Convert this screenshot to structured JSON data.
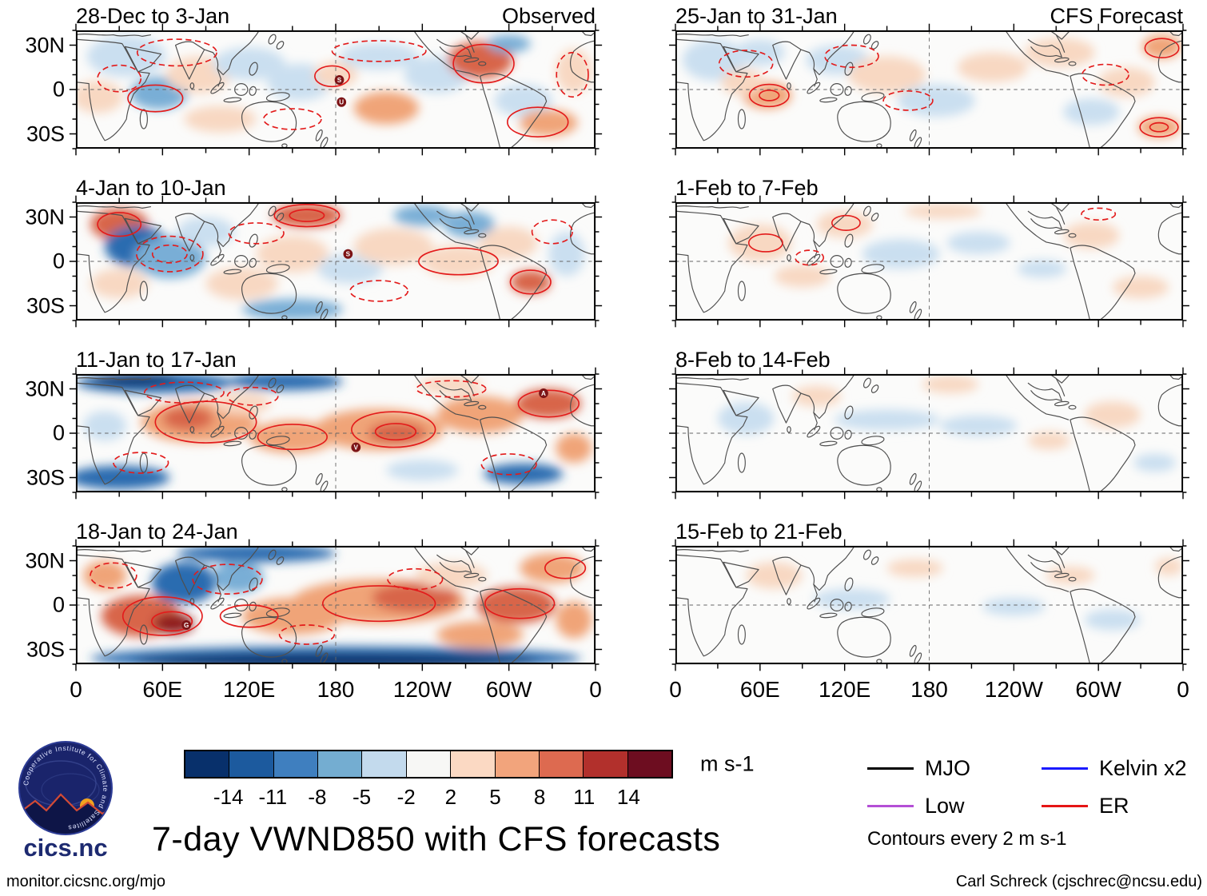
{
  "chart_data": {
    "type": "heatmap",
    "title": "7-day VWND850 with CFS forecasts",
    "units": "m s-1",
    "x_ticks": [
      "0",
      "60E",
      "120E",
      "180",
      "120W",
      "60W",
      "0"
    ],
    "y_ticks": [
      "30N",
      "0",
      "30S"
    ],
    "colorbar": {
      "labels": [
        "-14",
        "-11",
        "-8",
        "-5",
        "-2",
        "2",
        "5",
        "8",
        "11",
        "14"
      ],
      "colors": [
        "#08306b",
        "#1c5a9e",
        "#3f7fbf",
        "#74add1",
        "#c3daed",
        "#f7f7f5",
        "#fbd9c3",
        "#f2a47c",
        "#dd6a50",
        "#b2302c",
        "#6d0d20"
      ]
    },
    "legend": [
      {
        "label": "MJO",
        "color": "#000000"
      },
      {
        "label": "Kelvin x2",
        "color": "#1a1aff"
      },
      {
        "label": "Low",
        "color": "#b44fd6"
      },
      {
        "label": "ER",
        "color": "#e51515"
      }
    ],
    "contour_note": "Contours every 2 m s-1",
    "palette": {
      "db": "#08306b",
      "sb": "#2b6cb0",
      "mb": "#79aed6",
      "lb": "#cadff0",
      "lr": "#f8d8c2",
      "mr": "#f0a478",
      "sr": "#d8654a",
      "dr": "#8f1d1d"
    },
    "panels": [
      {
        "date": "28-Dec to 3-Jan",
        "corner": "Observed",
        "blobs": [
          [
            70,
            35,
            55,
            28,
            "lb"
          ],
          [
            30,
            90,
            35,
            22,
            "lr"
          ],
          [
            115,
            85,
            40,
            22,
            "mb"
          ],
          [
            170,
            60,
            45,
            25,
            "lr"
          ],
          [
            240,
            45,
            50,
            22,
            "lb"
          ],
          [
            310,
            70,
            45,
            25,
            "lb"
          ],
          [
            360,
            60,
            30,
            18,
            "lr"
          ],
          [
            420,
            35,
            55,
            18,
            "lb"
          ],
          [
            430,
            105,
            45,
            22,
            "mr"
          ],
          [
            500,
            60,
            45,
            25,
            "lb"
          ],
          [
            560,
            40,
            45,
            25,
            "sr"
          ],
          [
            600,
            18,
            30,
            12,
            "mb"
          ],
          [
            620,
            95,
            40,
            22,
            "lb"
          ],
          [
            655,
            125,
            40,
            18,
            "mr"
          ],
          [
            690,
            55,
            25,
            30,
            "lr"
          ],
          [
            200,
            120,
            50,
            18,
            "lr"
          ]
        ],
        "contours": [
          [
            140,
            30,
            55,
            18,
            1
          ],
          [
            110,
            92,
            38,
            18,
            0
          ],
          [
            420,
            28,
            65,
            14,
            1
          ],
          [
            355,
            62,
            24,
            14,
            0
          ],
          [
            300,
            120,
            40,
            14,
            1
          ],
          [
            565,
            45,
            42,
            26,
            0
          ],
          [
            640,
            124,
            42,
            20,
            0
          ],
          [
            688,
            60,
            22,
            30,
            1
          ],
          [
            60,
            65,
            30,
            18,
            1
          ]
        ],
        "markers": [
          [
            "S",
            365,
            67
          ],
          [
            "U",
            368,
            97
          ]
        ]
      },
      {
        "date": "4-Jan to 10-Jan",
        "corner": "",
        "blobs": [
          [
            60,
            30,
            40,
            22,
            "sr"
          ],
          [
            85,
            60,
            45,
            28,
            "sb"
          ],
          [
            130,
            75,
            50,
            28,
            "mb"
          ],
          [
            60,
            110,
            40,
            20,
            "lr"
          ],
          [
            180,
            40,
            40,
            20,
            "lb"
          ],
          [
            230,
            110,
            50,
            22,
            "lr"
          ],
          [
            320,
            18,
            48,
            16,
            "sr"
          ],
          [
            300,
            70,
            50,
            25,
            "lr"
          ],
          [
            380,
            90,
            45,
            20,
            "lb"
          ],
          [
            440,
            60,
            55,
            25,
            "lr"
          ],
          [
            480,
            18,
            40,
            14,
            "mb"
          ],
          [
            545,
            30,
            35,
            18,
            "mb"
          ],
          [
            530,
            80,
            50,
            22,
            "lr"
          ],
          [
            600,
            55,
            40,
            22,
            "lr"
          ],
          [
            630,
            108,
            28,
            16,
            "sr"
          ],
          [
            680,
            70,
            25,
            30,
            "lb"
          ],
          [
            300,
            145,
            70,
            14,
            "mb"
          ]
        ],
        "contours": [
          [
            130,
            70,
            46,
            24,
            1
          ],
          [
            130,
            70,
            24,
            12,
            1
          ],
          [
            320,
            18,
            45,
            15,
            0
          ],
          [
            320,
            18,
            24,
            8,
            0
          ],
          [
            250,
            42,
            38,
            14,
            1
          ],
          [
            530,
            80,
            55,
            18,
            0
          ],
          [
            630,
            108,
            28,
            16,
            0
          ],
          [
            660,
            40,
            28,
            16,
            1
          ],
          [
            60,
            30,
            30,
            16,
            0
          ],
          [
            420,
            120,
            40,
            14,
            1
          ]
        ],
        "markers": [
          [
            "S",
            377,
            70
          ]
        ]
      },
      {
        "date": "11-Jan to 17-Jan",
        "corner": "",
        "blobs": [
          [
            110,
            12,
            110,
            14,
            "sb"
          ],
          [
            80,
            8,
            60,
            8,
            "db"
          ],
          [
            60,
            140,
            70,
            16,
            "sb"
          ],
          [
            290,
            10,
            80,
            12,
            "sb"
          ],
          [
            170,
            65,
            80,
            28,
            "mr"
          ],
          [
            155,
            60,
            35,
            16,
            "sr"
          ],
          [
            300,
            85,
            60,
            22,
            "mr"
          ],
          [
            420,
            75,
            90,
            28,
            "mr"
          ],
          [
            445,
            80,
            40,
            15,
            "sr"
          ],
          [
            560,
            55,
            60,
            25,
            "mr"
          ],
          [
            655,
            40,
            45,
            20,
            "sr"
          ],
          [
            620,
            135,
            55,
            14,
            "sb"
          ],
          [
            480,
            130,
            50,
            14,
            "lb"
          ],
          [
            40,
            70,
            30,
            20,
            "lb"
          ],
          [
            230,
            40,
            40,
            15,
            "lr"
          ],
          [
            690,
            100,
            25,
            20,
            "mr"
          ],
          [
            520,
            15,
            45,
            12,
            "lr"
          ]
        ],
        "contours": [
          [
            180,
            65,
            70,
            28,
            0
          ],
          [
            150,
            25,
            55,
            14,
            1
          ],
          [
            440,
            75,
            58,
            24,
            0
          ],
          [
            443,
            78,
            28,
            11,
            0
          ],
          [
            520,
            20,
            48,
            11,
            1
          ],
          [
            655,
            40,
            42,
            18,
            0
          ],
          [
            600,
            122,
            38,
            14,
            1
          ],
          [
            300,
            85,
            48,
            17,
            0
          ],
          [
            90,
            120,
            38,
            14,
            1
          ],
          [
            245,
            30,
            35,
            12,
            1
          ]
        ],
        "markers": [
          [
            "V",
            388,
            99
          ],
          [
            "A",
            648,
            26
          ]
        ]
      },
      {
        "date": "18-Jan to 24-Jan",
        "corner": "",
        "blobs": [
          [
            360,
            152,
            340,
            16,
            "sb"
          ],
          [
            360,
            156,
            280,
            10,
            "db"
          ],
          [
            250,
            10,
            110,
            12,
            "sb"
          ],
          [
            150,
            50,
            45,
            28,
            "sb"
          ],
          [
            225,
            42,
            35,
            22,
            "mb"
          ],
          [
            90,
            95,
            55,
            28,
            "sr"
          ],
          [
            135,
            105,
            28,
            14,
            "dr"
          ],
          [
            300,
            95,
            70,
            25,
            "mr"
          ],
          [
            420,
            75,
            120,
            30,
            "mr"
          ],
          [
            470,
            70,
            60,
            20,
            "sr"
          ],
          [
            610,
            80,
            55,
            25,
            "sr"
          ],
          [
            660,
            30,
            45,
            20,
            "mr"
          ],
          [
            560,
            120,
            60,
            18,
            "mr"
          ],
          [
            40,
            40,
            30,
            20,
            "mr"
          ],
          [
            690,
            100,
            25,
            25,
            "mr"
          ],
          [
            520,
            40,
            50,
            18,
            "lr"
          ]
        ],
        "contours": [
          [
            120,
            95,
            55,
            26,
            0
          ],
          [
            133,
            102,
            28,
            13,
            0
          ],
          [
            210,
            45,
            48,
            20,
            1
          ],
          [
            420,
            78,
            78,
            24,
            0
          ],
          [
            470,
            45,
            38,
            14,
            1
          ],
          [
            615,
            78,
            48,
            20,
            0
          ],
          [
            320,
            120,
            38,
            13,
            1
          ],
          [
            678,
            30,
            28,
            14,
            0
          ],
          [
            52,
            40,
            32,
            17,
            1
          ],
          [
            240,
            95,
            40,
            15,
            0
          ]
        ],
        "markers": [
          [
            "G",
            153,
            107
          ]
        ]
      },
      {
        "date": "25-Jan to 31-Jan",
        "corner": "CFS Forecast",
        "blobs": [
          [
            55,
            40,
            45,
            28,
            "lb"
          ],
          [
            120,
            30,
            35,
            18,
            "lb"
          ],
          [
            130,
            88,
            35,
            18,
            "mr"
          ],
          [
            95,
            70,
            30,
            18,
            "lr"
          ],
          [
            230,
            40,
            45,
            20,
            "lb"
          ],
          [
            300,
            60,
            55,
            25,
            "lr"
          ],
          [
            370,
            95,
            55,
            22,
            "lb"
          ],
          [
            450,
            50,
            50,
            20,
            "lr"
          ],
          [
            545,
            30,
            50,
            20,
            "lr"
          ],
          [
            690,
            22,
            28,
            16,
            "mr"
          ],
          [
            640,
            70,
            40,
            20,
            "lr"
          ],
          [
            686,
            131,
            30,
            14,
            "mr"
          ],
          [
            590,
            110,
            40,
            18,
            "lb"
          ]
        ],
        "contours": [
          [
            100,
            45,
            38,
            18,
            1
          ],
          [
            133,
            88,
            28,
            15,
            0
          ],
          [
            133,
            88,
            14,
            7,
            0
          ],
          [
            250,
            35,
            38,
            15,
            1
          ],
          [
            690,
            24,
            24,
            13,
            0
          ],
          [
            610,
            60,
            33,
            14,
            1
          ],
          [
            686,
            131,
            27,
            13,
            0
          ],
          [
            686,
            131,
            13,
            6,
            0
          ],
          [
            330,
            95,
            35,
            13,
            1
          ]
        ],
        "markers": []
      },
      {
        "date": "1-Feb to 7-Feb",
        "corner": "",
        "blobs": [
          [
            120,
            55,
            45,
            25,
            "lr"
          ],
          [
            240,
            30,
            40,
            18,
            "lr"
          ],
          [
            320,
            70,
            55,
            20,
            "lb"
          ],
          [
            430,
            55,
            45,
            15,
            "lb"
          ],
          [
            380,
            12,
            55,
            10,
            "lr"
          ],
          [
            590,
            45,
            40,
            18,
            "lr"
          ],
          [
            660,
            115,
            40,
            15,
            "lr"
          ],
          [
            180,
            100,
            40,
            15,
            "lr"
          ],
          [
            520,
            90,
            35,
            12,
            "lb"
          ]
        ],
        "contours": [
          [
            128,
            55,
            24,
            12,
            0
          ],
          [
            190,
            75,
            20,
            10,
            1
          ],
          [
            242,
            28,
            20,
            10,
            0
          ],
          [
            600,
            16,
            24,
            8,
            1
          ]
        ],
        "markers": []
      },
      {
        "date": "8-Feb to 14-Feb",
        "corner": "",
        "blobs": [
          [
            100,
            60,
            40,
            22,
            "lb"
          ],
          [
            300,
            62,
            75,
            14,
            "lb"
          ],
          [
            430,
            70,
            55,
            14,
            "lb"
          ],
          [
            390,
            14,
            40,
            12,
            "lr"
          ],
          [
            620,
            55,
            40,
            18,
            "lr"
          ],
          [
            530,
            90,
            30,
            12,
            "lr"
          ],
          [
            200,
            30,
            35,
            14,
            "lr"
          ],
          [
            680,
            120,
            30,
            12,
            "lb"
          ]
        ],
        "contours": [],
        "markers": []
      },
      {
        "date": "15-Feb to 21-Feb",
        "corner": "",
        "blobs": [
          [
            250,
            72,
            55,
            14,
            "lb"
          ],
          [
            480,
            82,
            45,
            12,
            "lb"
          ],
          [
            620,
            100,
            40,
            14,
            "lb"
          ],
          [
            140,
            40,
            40,
            18,
            "lr"
          ],
          [
            700,
            28,
            20,
            12,
            "lr"
          ],
          [
            340,
            30,
            40,
            12,
            "lr"
          ],
          [
            560,
            40,
            35,
            12,
            "lr"
          ]
        ],
        "contours": [],
        "markers": []
      }
    ]
  },
  "branding": {
    "ring_text": "Cooperative Institute for Climate and Satellites",
    "name": "cics.nc"
  },
  "footer": {
    "left": "monitor.cicsnc.org/mjo",
    "right": "Carl Schreck (cjschrec@ncsu.edu)"
  }
}
